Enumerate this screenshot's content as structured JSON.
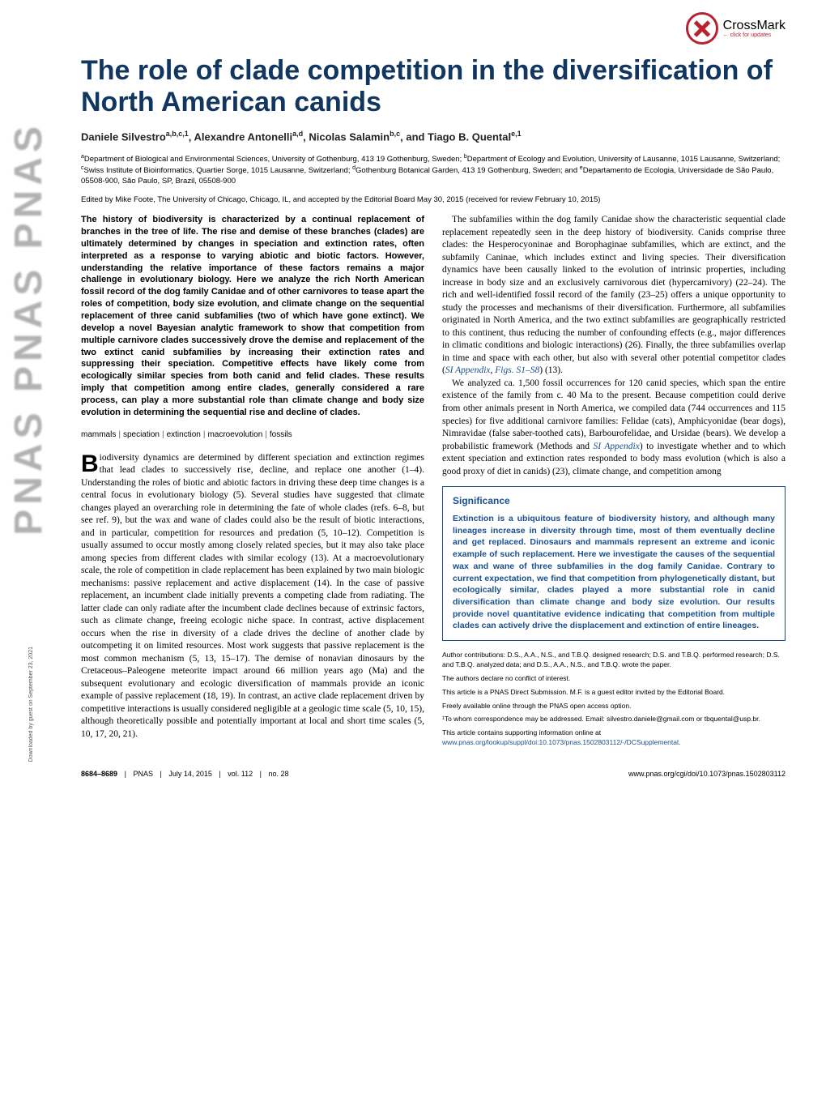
{
  "crossmark": {
    "main": "CrossMark",
    "sub": "← click for updates"
  },
  "pnas_vertical": "PNAS  PNAS  PNAS",
  "download_note": "Downloaded by guest on September 23, 2021",
  "title": "The role of clade competition in the diversification of North American canids",
  "authors_html": "Daniele Silvestro<sup>a,b,c,1</sup>, Alexandre Antonelli<sup>a,d</sup>, Nicolas Salamin<sup>b,c</sup>, and Tiago B. Quental<sup>e,1</sup>",
  "affiliations_html": "<sup>a</sup>Department of Biological and Environmental Sciences, University of Gothenburg, 413 19 Gothenburg, Sweden; <sup>b</sup>Department of Ecology and Evolution, University of Lausanne, 1015 Lausanne, Switzerland; <sup>c</sup>Swiss Institute of Bioinformatics, Quartier Sorge, 1015 Lausanne, Switzerland; <sup>d</sup>Gothenburg Botanical Garden, 413 19 Gothenburg, Sweden; and <sup>e</sup>Departamento de Ecologia, Universidade de São Paulo, 05508-900, São Paulo, SP, Brazil, 05508-900",
  "edited": "Edited by Mike Foote, The University of Chicago, Chicago, IL, and accepted by the Editorial Board May 30, 2015 (received for review February 10, 2015)",
  "abstract": "The history of biodiversity is characterized by a continual replacement of branches in the tree of life. The rise and demise of these branches (clades) are ultimately determined by changes in speciation and extinction rates, often interpreted as a response to varying abiotic and biotic factors. However, understanding the relative importance of these factors remains a major challenge in evolutionary biology. Here we analyze the rich North American fossil record of the dog family Canidae and of other carnivores to tease apart the roles of competition, body size evolution, and climate change on the sequential replacement of three canid subfamilies (two of which have gone extinct). We develop a novel Bayesian analytic framework to show that competition from multiple carnivore clades successively drove the demise and replacement of the two extinct canid subfamilies by increasing their extinction rates and suppressing their speciation. Competitive effects have likely come from ecologically similar species from both canid and felid clades. These results imply that competition among entire clades, generally considered a rare process, can play a more substantial role than climate change and body size evolution in determining the sequential rise and decline of clades.",
  "keywords": [
    "mammals",
    "speciation",
    "extinction",
    "macroevolution",
    "fossils"
  ],
  "body_col1_p1": "iodiversity dynamics are determined by different speciation and extinction regimes that lead clades to successively rise, decline, and replace one another (1–4). Understanding the roles of biotic and abiotic factors in driving these deep time changes is a central focus in evolutionary biology (5). Several studies have suggested that climate changes played an overarching role in determining the fate of whole clades (refs. 6–8, but see ref. 9), but the wax and wane of clades could also be the result of biotic interactions, and in particular, competition for resources and predation (5, 10–12). Competition is usually assumed to occur mostly among closely related species, but it may also take place among species from different clades with similar ecology (13). At a macroevolutionary scale, the role of competition in clade replacement has been explained by two main biologic mechanisms: passive replacement and active displacement (14). In the case of passive replacement, an incumbent clade initially prevents a competing clade from radiating. The latter clade can only radiate after the incumbent clade declines because of extrinsic factors, such as climate change, freeing ecologic niche space. In contrast, active displacement occurs when the rise in diversity of a clade drives the decline of another clade by outcompeting it on limited resources. Most work suggests that passive replacement is the most common mechanism (5, 13, 15–17). The demise of nonavian dinosaurs by the Cretaceous–Paleogene meteorite impact around 66 million years ago (Ma) and the subsequent evolutionary and ecologic diversification of mammals provide an iconic example of passive replacement (18, 19). In contrast, an active clade replacement driven by competitive interactions is usually considered negligible at a geologic time scale (5, 10, 15), although theoretically possible and potentially important at local and short time scales (5, 10, 17, 20, 21).",
  "dropcap": "B",
  "body_col2_p1_html": "The subfamilies within the dog family Canidae show the characteristic sequential clade replacement repeatedly seen in the deep history of biodiversity. Canids comprise three clades: the Hesperocyoninae and Borophaginae subfamilies, which are extinct, and the subfamily Caninae, which includes extinct and living species. Their diversification dynamics have been causally linked to the evolution of intrinsic properties, including increase in body size and an exclusively carnivorous diet (hypercarnivory) (22–24). The rich and well-identified fossil record of the family (23–25) offers a unique opportunity to study the processes and mechanisms of their diversification. Furthermore, all subfamilies originated in North America, and the two extinct subfamilies are geographically restricted to this continent, thus reducing the number of confounding effects (e.g., major differences in climatic conditions and biologic interactions) (26). Finally, the three subfamilies overlap in time and space with each other, but also with several other potential competitor clades (<span class=\"si-link\">SI Appendix</span>, <span class=\"si-link\">Figs. S1–S8</span>) (13).",
  "body_col2_p2_html": "We analyzed ca. 1,500 fossil occurrences for 120 canid species, which span the entire existence of the family from c. 40 Ma to the present. Because competition could derive from other animals present in North America, we compiled data (744 occurrences and 115 species) for five additional carnivore families: Felidae (cats), Amphicyonidae (bear dogs), Nimravidae (false saber-toothed cats), Barbourofelidae, and Ursidae (bears). We develop a probabilistic framework (Methods and <span class=\"si-link\">SI Appendix</span>) to investigate whether and to which extent speciation and extinction rates responded to body mass evolution (which is also a good proxy of diet in canids) (23), climate change, and competition among",
  "significance": {
    "heading": "Significance",
    "text": "Extinction is a ubiquitous feature of biodiversity history, and although many lineages increase in diversity through time, most of them eventually decline and get replaced. Dinosaurs and mammals represent an extreme and iconic example of such replacement. Here we investigate the causes of the sequential wax and wane of three subfamilies in the dog family Canidae. Contrary to current expectation, we find that competition from phylogenetically distant, but ecologically similar, clades played a more substantial role in canid diversification than climate change and body size evolution. Our results provide novel quantitative evidence indicating that competition from multiple clades can actively drive the displacement and extinction of entire lineages."
  },
  "footnotes": {
    "contributions": "Author contributions: D.S., A.A., N.S., and T.B.Q. designed research; D.S. and T.B.Q. performed research; D.S. and T.B.Q. analyzed data; and D.S., A.A., N.S., and T.B.Q. wrote the paper.",
    "conflict": "The authors declare no conflict of interest.",
    "direct": "This article is a PNAS Direct Submission. M.F. is a guest editor invited by the Editorial Board.",
    "open": "Freely available online through the PNAS open access option.",
    "correspondence": "¹To whom correspondence may be addressed. Email: silvestro.daniele@gmail.com or tbquental@usp.br.",
    "si": "This article contains supporting information online at ",
    "si_link": "www.pnas.org/lookup/suppl/doi:10.1073/pnas.1502803112/-/DCSupplemental",
    "si_period": "."
  },
  "footer": {
    "pages": "8684–8689",
    "journal": "PNAS",
    "date": "July 14, 2015",
    "vol": "vol. 112",
    "no": "no. 28",
    "doi": "www.pnas.org/cgi/doi/10.1073/pnas.1502803112"
  },
  "colors": {
    "heading": "#11365f",
    "link": "#1a4f8f",
    "crossmark": "#b8232f"
  }
}
